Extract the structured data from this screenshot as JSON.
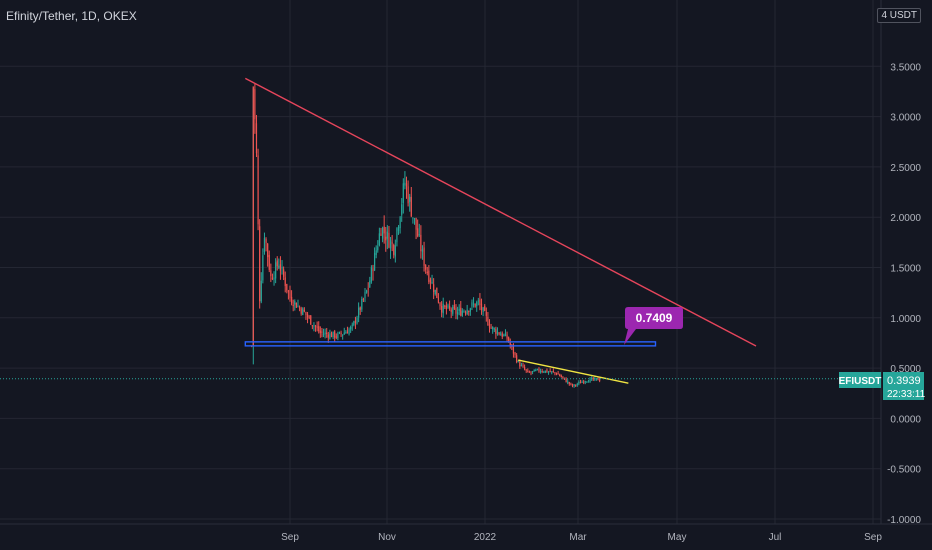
{
  "header": {
    "symbol_title": "Efinity/Tether, 1D, OKEX",
    "unit_label": "4 USDT"
  },
  "price_scale": {
    "labels": [
      "3.5000",
      "3.0000",
      "2.5000",
      "2.0000",
      "1.5000",
      "1.0000",
      "0.5000",
      "0.0000",
      "-0.5000",
      "-1.0000"
    ]
  },
  "time_scale": {
    "labels": [
      "Sep",
      "Nov",
      "2022",
      "Mar",
      "May",
      "Jul",
      "Sep"
    ]
  },
  "annotations": {
    "support_level_callout": "0.7409"
  },
  "last_price": {
    "ticker": "EFIUSDT",
    "price": "0.3939",
    "countdown": "22:33:11"
  },
  "colors": {
    "background": "#141722",
    "grid": "#242733",
    "bull": "#26a69a",
    "bear": "#ef5350",
    "resistance_line": "#e5455b",
    "support_band": "#2962ff",
    "wedge_line": "#f0e442",
    "callout": "#9c27b0",
    "price_tag": "#26a69a"
  },
  "chart_data": {
    "type": "candlestick",
    "title": "Efinity/Tether, 1D, OKEX",
    "ylabel": "USDT",
    "ylim": [
      -1.0,
      4.0
    ],
    "x_ticks": [
      "Sep",
      "Nov",
      "2022",
      "Mar",
      "May",
      "Jul",
      "Sep"
    ],
    "x_range": [
      "2021-07-20",
      "2022-09-05"
    ],
    "grid": true,
    "series": [
      {
        "approx_close_path": [
          [
            "2021-08-08",
            0.72
          ],
          [
            "2021-08-09",
            3.3
          ],
          [
            "2021-08-11",
            2.6
          ],
          [
            "2021-08-13",
            1.2
          ],
          [
            "2021-08-16",
            1.85
          ],
          [
            "2021-08-20",
            1.4
          ],
          [
            "2021-08-25",
            1.55
          ],
          [
            "2021-09-01",
            1.2
          ],
          [
            "2021-09-10",
            1.05
          ],
          [
            "2021-09-20",
            0.85
          ],
          [
            "2021-10-01",
            0.82
          ],
          [
            "2021-10-10",
            0.9
          ],
          [
            "2021-10-20",
            1.3
          ],
          [
            "2021-10-28",
            1.9
          ],
          [
            "2021-11-05",
            1.7
          ],
          [
            "2021-11-12",
            2.35
          ],
          [
            "2021-11-18",
            1.95
          ],
          [
            "2021-11-25",
            1.5
          ],
          [
            "2021-12-05",
            1.1
          ],
          [
            "2021-12-15",
            1.05
          ],
          [
            "2021-12-28",
            1.15
          ],
          [
            "2022-01-05",
            0.9
          ],
          [
            "2022-01-15",
            0.8
          ],
          [
            "2022-01-22",
            0.55
          ],
          [
            "2022-01-28",
            0.45
          ],
          [
            "2022-02-05",
            0.48
          ],
          [
            "2022-02-15",
            0.45
          ],
          [
            "2022-02-25",
            0.32
          ],
          [
            "2022-03-05",
            0.38
          ],
          [
            "2022-03-15",
            0.39
          ]
        ]
      }
    ],
    "drawings": [
      {
        "kind": "trendline",
        "role": "descending resistance",
        "points": [
          [
            "2021-08-04",
            3.38
          ],
          [
            "2022-06-20",
            0.72
          ]
        ]
      },
      {
        "kind": "horizontal band",
        "role": "support",
        "value": 0.7409,
        "from": "2021-08-04",
        "to": "2022-04-18"
      },
      {
        "kind": "trendline",
        "role": "short-term descending",
        "points": [
          [
            "2022-01-22",
            0.58
          ],
          [
            "2022-04-01",
            0.35
          ]
        ]
      }
    ],
    "last_value": 0.3939
  }
}
